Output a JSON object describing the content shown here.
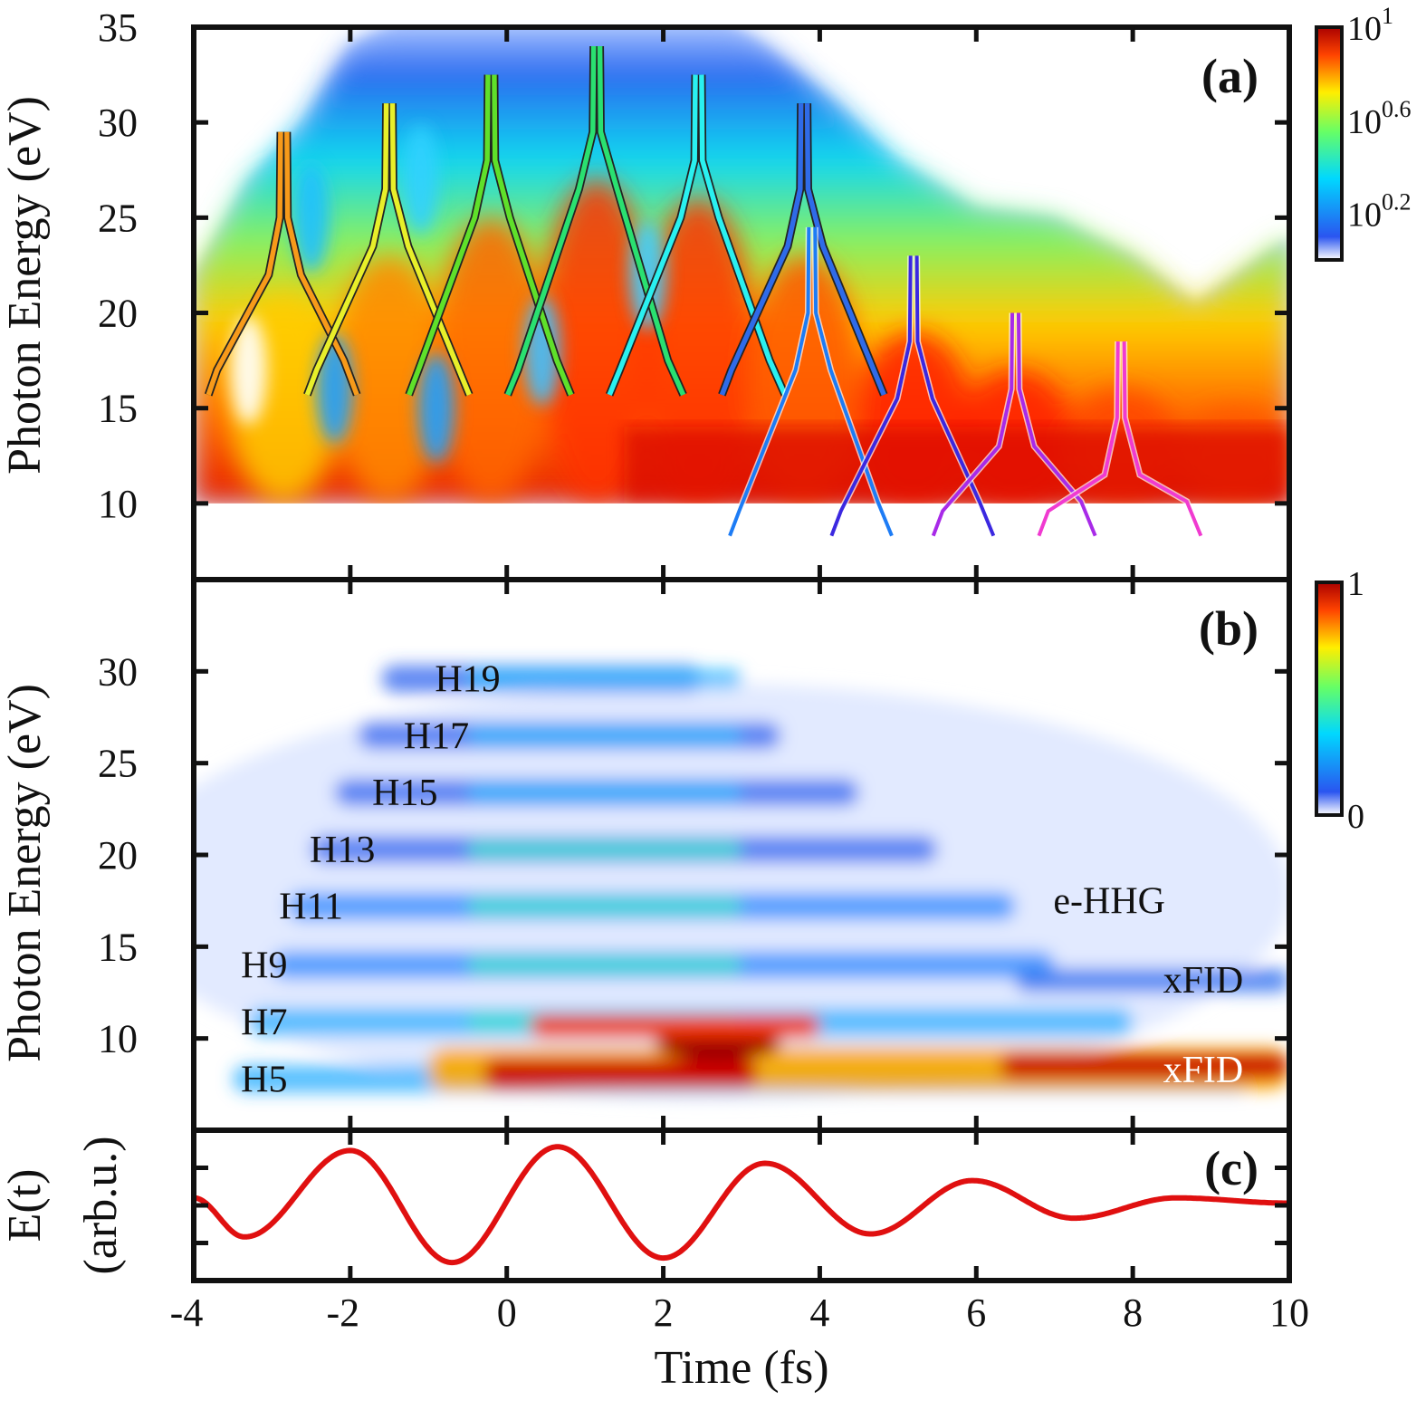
{
  "chart_data": [
    {
      "id": "a",
      "type": "heatmap",
      "panel_label": "(a)",
      "ylabel": "Photon Energy (eV)",
      "xlim": [
        -4,
        10
      ],
      "ylim": [
        6,
        35
      ],
      "yticks": [
        "10",
        "15",
        "20",
        "25",
        "30",
        "35"
      ],
      "ytick_values": [
        10,
        15,
        20,
        25,
        30,
        35
      ],
      "xtick_values": [
        -4,
        -2,
        0,
        2,
        4,
        6,
        8,
        10
      ],
      "colorbar": {
        "scale": "log",
        "range_exp": [
          0,
          1
        ],
        "labels": [
          {
            "base": "10",
            "exp": "1",
            "value": 1
          },
          {
            "base": "10",
            "exp": "0.6",
            "value": 0.6
          },
          {
            "base": "10",
            "exp": "0.2",
            "value": 0.2
          }
        ],
        "colormap": "jet"
      },
      "intensity_floor_ev": 10,
      "trajectories": [
        {
          "t0": -2.85,
          "color": "#f79a1a",
          "width": 0.55,
          "bottom": 15.7,
          "peak": 29.5,
          "fork": 25.0,
          "outlined": true
        },
        {
          "t0": -1.5,
          "color": "#e8ef2a",
          "width": 0.6,
          "bottom": 15.7,
          "peak": 31.0,
          "fork": 26.5,
          "outlined": true
        },
        {
          "t0": -0.2,
          "color": "#5fe02a",
          "width": 0.6,
          "bottom": 15.7,
          "peak": 32.5,
          "fork": 28.0,
          "outlined": true
        },
        {
          "t0": 1.15,
          "color": "#2ae070",
          "width": 0.65,
          "bottom": 15.7,
          "peak": 34.0,
          "fork": 29.5,
          "outlined": true
        },
        {
          "t0": 2.45,
          "color": "#2af0f0",
          "width": 0.65,
          "bottom": 15.7,
          "peak": 32.5,
          "fork": 28.0,
          "outlined": true
        },
        {
          "t0": 3.8,
          "color": "#2f6be8",
          "width": 0.6,
          "bottom": 15.7,
          "peak": 31.0,
          "fork": 26.5,
          "outlined": true
        },
        {
          "t0": 3.9,
          "color": "#1d7cf5",
          "width": 0.6,
          "bottom": 8.3,
          "peak": 24.5,
          "fork": 20.0,
          "outlined": false
        },
        {
          "t0": 5.2,
          "color": "#3b28e0",
          "width": 0.6,
          "bottom": 8.3,
          "peak": 23.0,
          "fork": 18.5,
          "outlined": false
        },
        {
          "t0": 6.5,
          "color": "#a82ae8",
          "width": 0.6,
          "bottom": 8.3,
          "peak": 20.0,
          "fork": 16.0,
          "outlined": false
        },
        {
          "t0": 7.85,
          "color": "#f03ad0",
          "width": 0.6,
          "bottom": 8.3,
          "peak": 18.5,
          "fork": 14.5,
          "outlined": false
        }
      ]
    },
    {
      "id": "b",
      "type": "heatmap",
      "panel_label": "(b)",
      "ylabel": "Photon Energy (eV)",
      "xlim": [
        -4,
        10
      ],
      "ylim": [
        5,
        35
      ],
      "yticks": [
        "10",
        "15",
        "20",
        "25",
        "30"
      ],
      "ytick_values": [
        10,
        15,
        20,
        25,
        30
      ],
      "xtick_values": [
        -4,
        -2,
        0,
        2,
        4,
        6,
        8,
        10
      ],
      "colorbar": {
        "scale": "linear",
        "range": [
          0,
          1
        ],
        "labels": [
          "1",
          "0"
        ],
        "colormap": "jet"
      },
      "harmonics": [
        {
          "label": "H5",
          "energy": 7.8
        },
        {
          "label": "H7",
          "energy": 10.9
        },
        {
          "label": "H9",
          "energy": 14.0
        },
        {
          "label": "H11",
          "energy": 17.2
        },
        {
          "label": "H13",
          "energy": 20.3
        },
        {
          "label": "H15",
          "energy": 23.4
        },
        {
          "label": "H17",
          "energy": 26.5
        },
        {
          "label": "H19",
          "energy": 29.6
        }
      ],
      "annotations": [
        {
          "text": "e-HHG",
          "x": 7.7,
          "y": 17.5,
          "color": "#111111"
        },
        {
          "text": "xFID",
          "x": 8.9,
          "y": 13.2,
          "color": "#111111"
        },
        {
          "text": "xFID",
          "x": 8.9,
          "y": 8.3,
          "color": "#ffffff"
        }
      ]
    },
    {
      "id": "c",
      "type": "line",
      "panel_label": "(c)",
      "ylabel_line1": "E(t)",
      "ylabel_line2": "(arb.u.)",
      "xlabel": "Time (fs)",
      "xlim": [
        -4,
        10
      ],
      "xticks": [
        "-4",
        "-2",
        "0",
        "2",
        "4",
        "6",
        "8",
        "10"
      ],
      "xtick_values": [
        -4,
        -2,
        0,
        2,
        4,
        6,
        8,
        10
      ],
      "series": [
        {
          "color": "#e01010",
          "x": [
            -4,
            -3.35,
            -2.0,
            -0.7,
            0.65,
            2.0,
            3.3,
            4.65,
            5.95,
            7.25,
            8.55,
            10
          ],
          "y": [
            0.1,
            -0.42,
            0.73,
            -0.76,
            0.78,
            -0.7,
            0.56,
            -0.38,
            0.33,
            -0.17,
            0.1,
            0.03
          ]
        }
      ]
    }
  ]
}
